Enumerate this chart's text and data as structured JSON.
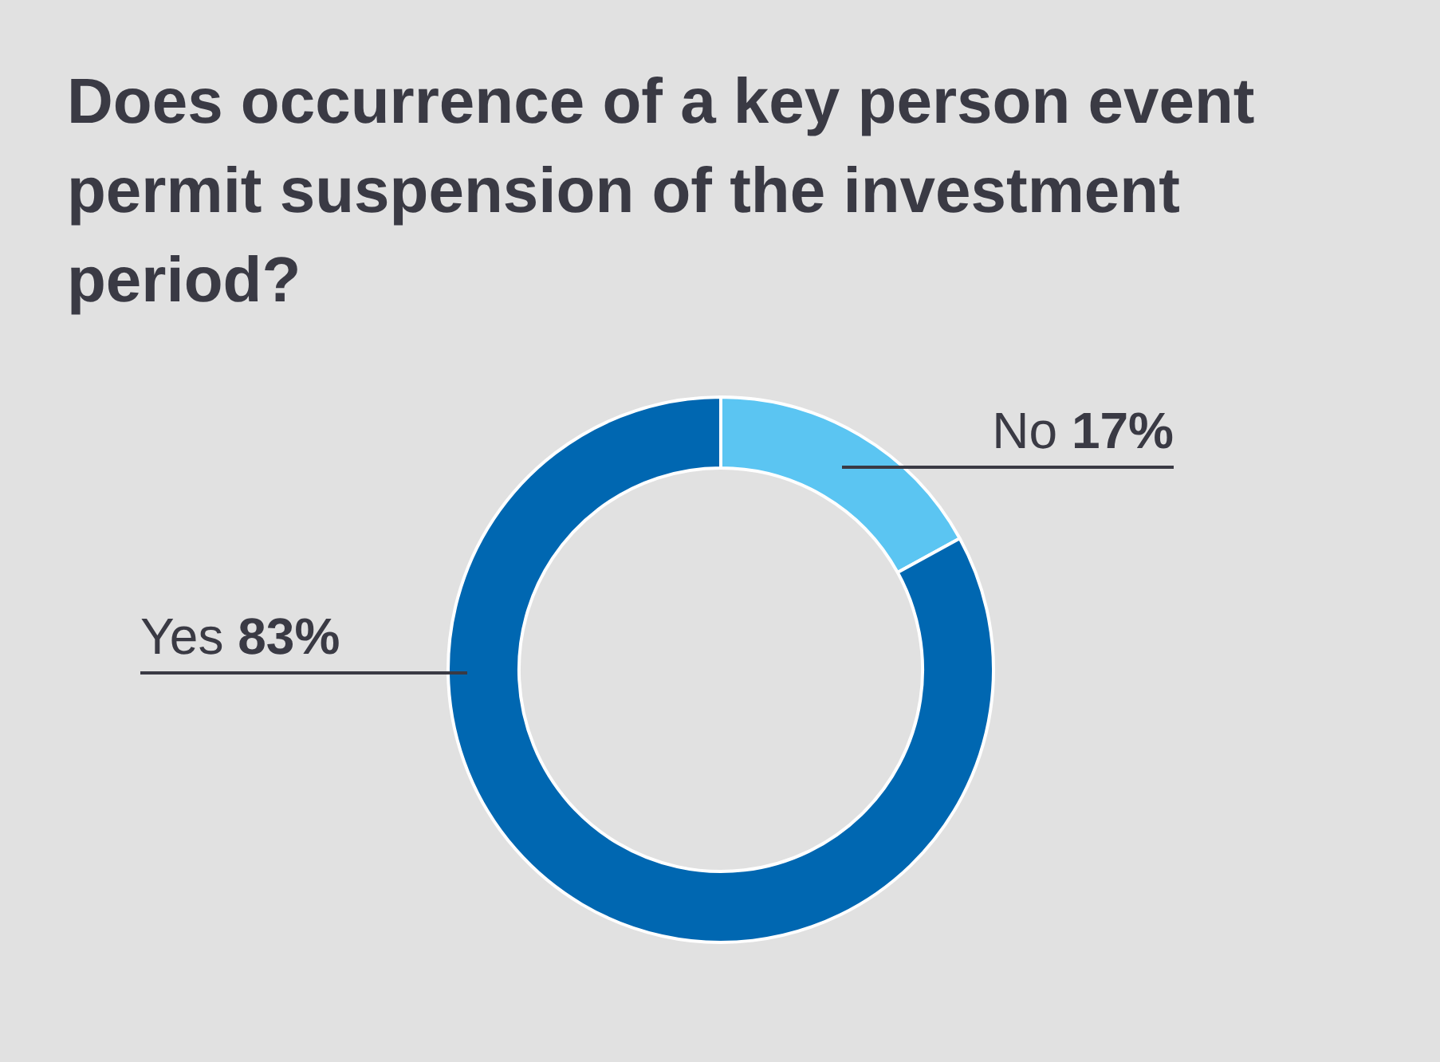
{
  "chart_data": {
    "type": "donut",
    "title": "Does occurrence of a key person event permit suspension of the investment period?",
    "categories": [
      "No",
      "Yes"
    ],
    "values": [
      17,
      83
    ],
    "colors": [
      "#5bc5f2",
      "#0067b1"
    ],
    "value_labels": [
      "17%",
      "83%"
    ],
    "legend": false
  }
}
